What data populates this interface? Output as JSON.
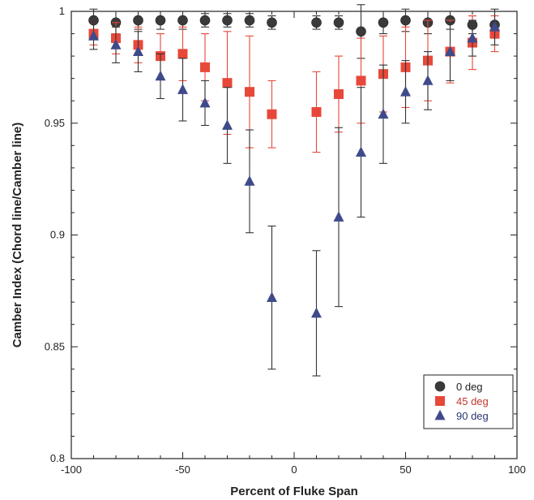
{
  "chart_data": {
    "type": "scatter",
    "title": "",
    "xlabel": "Percent of Fluke Span",
    "ylabel": "Camber Index (Chord line/Camber line)",
    "xlim": [
      -100,
      100
    ],
    "ylim": [
      0.8,
      1.0
    ],
    "xticks": [
      -100,
      -50,
      0,
      50,
      100
    ],
    "yticks": [
      0.8,
      0.85,
      0.9,
      0.95,
      1.0
    ],
    "xtick_labels": [
      "-100",
      "-50",
      "0",
      "50",
      "100"
    ],
    "ytick_labels": [
      "0.8",
      "0.85",
      "0.9",
      "0.95",
      "1"
    ],
    "error_bars": true,
    "grid": false,
    "legend_position": "bottom-right",
    "series": [
      {
        "name": "0 deg",
        "marker": "circle",
        "color": "#3a3a3a",
        "text_color": "#222222",
        "points": [
          {
            "x": -90,
            "y": 0.996,
            "err": 0.005
          },
          {
            "x": -80,
            "y": 0.995,
            "err": 0.005
          },
          {
            "x": -70,
            "y": 0.996,
            "err": 0.004
          },
          {
            "x": -60,
            "y": 0.996,
            "err": 0.004
          },
          {
            "x": -50,
            "y": 0.996,
            "err": 0.004
          },
          {
            "x": -40,
            "y": 0.996,
            "err": 0.003
          },
          {
            "x": -30,
            "y": 0.996,
            "err": 0.003
          },
          {
            "x": -20,
            "y": 0.996,
            "err": 0.003
          },
          {
            "x": -10,
            "y": 0.995,
            "err": 0.003
          },
          {
            "x": 10,
            "y": 0.995,
            "err": 0.003
          },
          {
            "x": 20,
            "y": 0.995,
            "err": 0.003
          },
          {
            "x": 30,
            "y": 0.991,
            "err": 0.012
          },
          {
            "x": 40,
            "y": 0.995,
            "err": 0.005
          },
          {
            "x": 50,
            "y": 0.996,
            "err": 0.005
          },
          {
            "x": 60,
            "y": 0.995,
            "err": 0.005
          },
          {
            "x": 70,
            "y": 0.996,
            "err": 0.004
          },
          {
            "x": 80,
            "y": 0.994,
            "err": 0.004
          },
          {
            "x": 90,
            "y": 0.994,
            "err": 0.006
          }
        ]
      },
      {
        "name": "45 deg",
        "marker": "square",
        "color": "#e8483a",
        "text_color": "#c0392b",
        "points": [
          {
            "x": -90,
            "y": 0.99,
            "err": 0.005
          },
          {
            "x": -80,
            "y": 0.988,
            "err": 0.007
          },
          {
            "x": -70,
            "y": 0.985,
            "err": 0.008
          },
          {
            "x": -60,
            "y": 0.98,
            "err": 0.01
          },
          {
            "x": -50,
            "y": 0.981,
            "err": 0.012
          },
          {
            "x": -40,
            "y": 0.975,
            "err": 0.015
          },
          {
            "x": -30,
            "y": 0.968,
            "err": 0.023
          },
          {
            "x": -20,
            "y": 0.964,
            "err": 0.025
          },
          {
            "x": -10,
            "y": 0.954,
            "err": 0.015
          },
          {
            "x": 10,
            "y": 0.955,
            "err": 0.018
          },
          {
            "x": 20,
            "y": 0.963,
            "err": 0.017
          },
          {
            "x": 30,
            "y": 0.969,
            "err": 0.019
          },
          {
            "x": 40,
            "y": 0.972,
            "err": 0.017
          },
          {
            "x": 50,
            "y": 0.975,
            "err": 0.018
          },
          {
            "x": 60,
            "y": 0.978,
            "err": 0.018
          },
          {
            "x": 70,
            "y": 0.982,
            "err": 0.014
          },
          {
            "x": 80,
            "y": 0.986,
            "err": 0.012
          },
          {
            "x": 90,
            "y": 0.99,
            "err": 0.008
          }
        ]
      },
      {
        "name": "90 deg",
        "marker": "triangle",
        "color": "#3f4a8a",
        "text_color": "#2c3573",
        "points": [
          {
            "x": -90,
            "y": 0.989,
            "err": 0.006
          },
          {
            "x": -80,
            "y": 0.985,
            "err": 0.008
          },
          {
            "x": -70,
            "y": 0.982,
            "err": 0.009
          },
          {
            "x": -60,
            "y": 0.971,
            "err": 0.01
          },
          {
            "x": -50,
            "y": 0.965,
            "err": 0.014
          },
          {
            "x": -40,
            "y": 0.959,
            "err": 0.01
          },
          {
            "x": -30,
            "y": 0.949,
            "err": 0.017
          },
          {
            "x": -20,
            "y": 0.924,
            "err": 0.023
          },
          {
            "x": -10,
            "y": 0.872,
            "err": 0.032
          },
          {
            "x": 10,
            "y": 0.865,
            "err": 0.028
          },
          {
            "x": 20,
            "y": 0.908,
            "err": 0.04
          },
          {
            "x": 30,
            "y": 0.937,
            "err": 0.029
          },
          {
            "x": 40,
            "y": 0.954,
            "err": 0.022
          },
          {
            "x": 50,
            "y": 0.964,
            "err": 0.014
          },
          {
            "x": 60,
            "y": 0.969,
            "err": 0.013
          },
          {
            "x": 70,
            "y": 0.982,
            "err": 0.013
          },
          {
            "x": 80,
            "y": 0.988,
            "err": 0.008
          },
          {
            "x": 90,
            "y": 0.993,
            "err": 0.008
          }
        ]
      }
    ]
  }
}
